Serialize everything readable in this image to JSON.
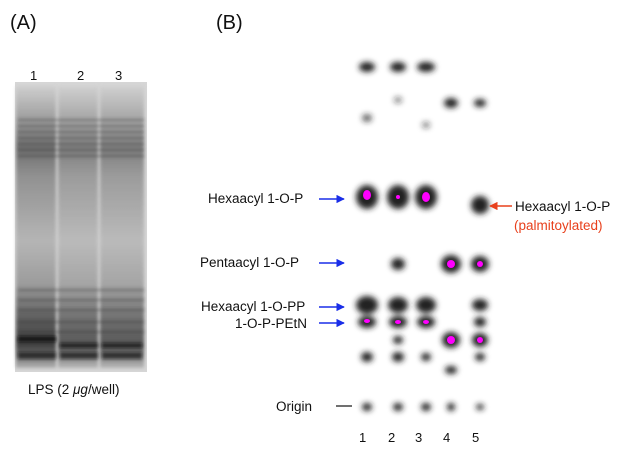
{
  "panel_a": {
    "label": "(A)",
    "lanes": [
      "1",
      "2",
      "3"
    ],
    "caption_prefix": "LPS (2 ",
    "caption_unit": "μg",
    "caption_suffix": "/well)"
  },
  "panel_b": {
    "label": "(B)",
    "lanes": [
      "1",
      "2",
      "3",
      "4",
      "5"
    ],
    "band_labels": {
      "hexaacyl_1op": "Hexaacyl 1-O-P",
      "pentaacyl_1op": "Pentaacyl 1-O-P",
      "hexaacyl_1opp": "Hexaacyl 1-O-PP",
      "op_petn": "1-O-P-PEtN",
      "origin": "Origin",
      "right_label": "Hexaacyl 1-O-P",
      "right_sublabel": "(palmitoylated)"
    }
  },
  "colors": {
    "arrow_blue": "#1a2ee8",
    "arrow_red": "#e8401c",
    "spot_magenta": "#ff00ff",
    "gel_background": "#d8d8d8"
  }
}
